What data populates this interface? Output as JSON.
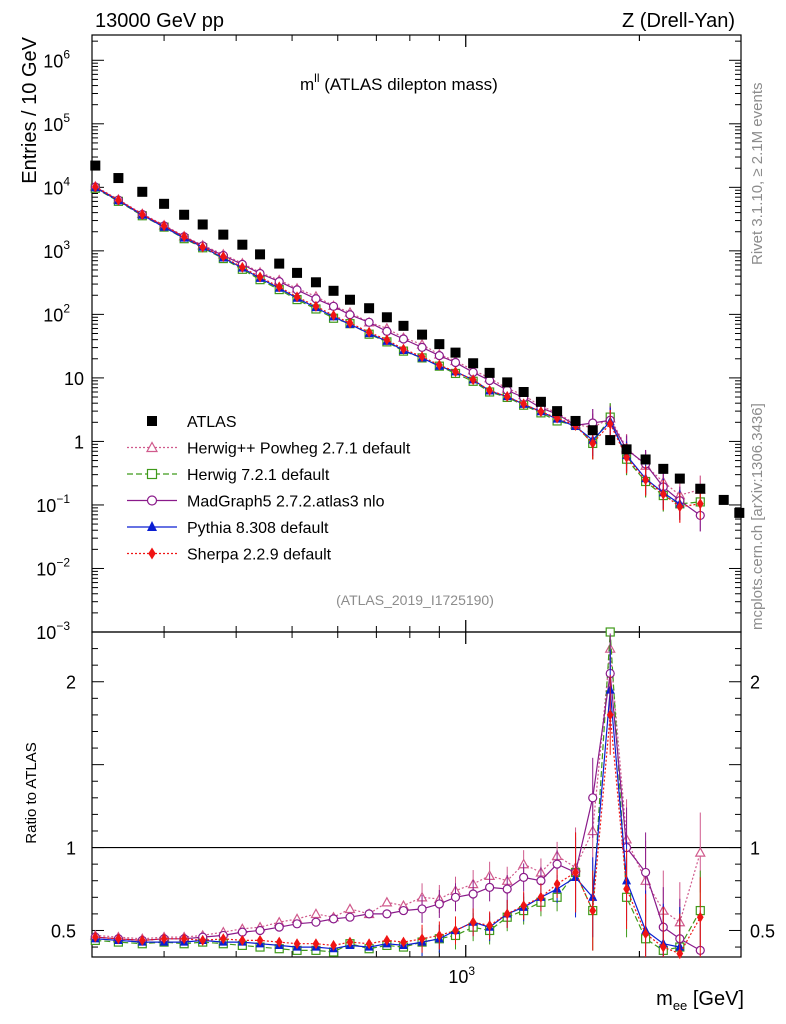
{
  "header": {
    "left": "13000 GeV pp",
    "right": "Z (Drell-Yan)"
  },
  "plot_title_main": "m",
  "plot_title_sup": "ll",
  "plot_title_rest": " (ATLAS dilepton mass)",
  "side_text_top": "Rivet 3.1.10, ≥ 2.1M events",
  "side_text_bottom": "mcplots.cern.ch [arXiv:1306.3436]",
  "analysis_id": "(ATLAS_2019_I1725190)",
  "colors": {
    "atlas": "#000000",
    "herwigpp": "#d05a8c",
    "herwig7": "#3f9a1a",
    "madgraph": "#8a1a8a",
    "pythia": "#0a1ed2",
    "sherpa": "#f01414"
  },
  "chart_data": [
    {
      "type": "scatter",
      "xlabel_main": "m",
      "xlabel_sub": "ee",
      "xlabel_unit": " [GeV]",
      "ylabel": "Entries / 10 GeV",
      "x_scale": "log",
      "y_scale": "log",
      "xlim": [
        225,
        3000
      ],
      "ylim": [
        0.001,
        2500000
      ],
      "x_ticks": [
        {
          "value": 1000,
          "base": "10",
          "exp": "3"
        }
      ],
      "y_ticks": [
        {
          "value": 0.001,
          "base": "10",
          "exp": "−3"
        },
        {
          "value": 0.01,
          "base": "10",
          "exp": "−2"
        },
        {
          "value": 0.1,
          "base": "10",
          "exp": "−1"
        },
        {
          "value": 1,
          "base": "1",
          "exp": ""
        },
        {
          "value": 10,
          "base": "10",
          "exp": ""
        },
        {
          "value": 100,
          "base": "10",
          "exp": "2"
        },
        {
          "value": 1000,
          "base": "10",
          "exp": "3"
        },
        {
          "value": 10000,
          "base": "10",
          "exp": "4"
        },
        {
          "value": 100000,
          "base": "10",
          "exp": "5"
        },
        {
          "value": 1000000,
          "base": "10",
          "exp": "6"
        }
      ],
      "legend_position": "bottom-left",
      "series": [
        {
          "key": "atlas",
          "name": "ATLAS",
          "marker": "square-filled",
          "line": "none"
        },
        {
          "key": "herwigpp",
          "name": "Herwig++ Powheg 2.7.1 default",
          "marker": "triangle-open",
          "line": "dotted"
        },
        {
          "key": "herwig7",
          "name": "Herwig 7.2.1 default",
          "marker": "square-open",
          "line": "dashed"
        },
        {
          "key": "madgraph",
          "name": "MadGraph5 2.7.2.atlas3 nlo",
          "marker": "circle-open",
          "line": "solid"
        },
        {
          "key": "pythia",
          "name": "Pythia 8.308 default",
          "marker": "triangle-filled",
          "line": "solid"
        },
        {
          "key": "sherpa",
          "name": "Sherpa 2.2.9 default",
          "marker": "diamond-filled",
          "line": "dotted"
        }
      ],
      "atlas_points": [
        [
          228,
          22000
        ],
        [
          250,
          14000
        ],
        [
          275,
          8500
        ],
        [
          300,
          5500
        ],
        [
          325,
          3700
        ],
        [
          350,
          2600
        ],
        [
          380,
          1800
        ],
        [
          410,
          1250
        ],
        [
          440,
          880
        ],
        [
          475,
          630
        ],
        [
          510,
          450
        ],
        [
          550,
          320
        ],
        [
          590,
          235
        ],
        [
          630,
          170
        ],
        [
          680,
          125
        ],
        [
          730,
          90
        ],
        [
          780,
          66
        ],
        [
          840,
          48
        ],
        [
          900,
          34
        ],
        [
          960,
          25
        ],
        [
          1030,
          17
        ],
        [
          1100,
          12
        ],
        [
          1180,
          8.5
        ],
        [
          1260,
          6
        ],
        [
          1350,
          4.2
        ],
        [
          1440,
          3
        ],
        [
          1550,
          2.1
        ],
        [
          1660,
          1.5
        ],
        [
          1780,
          1.05
        ],
        [
          1900,
          0.75
        ],
        [
          2050,
          0.52
        ],
        [
          2200,
          0.37
        ],
        [
          2350,
          0.26
        ],
        [
          2550,
          0.18
        ],
        [
          2800,
          0.12
        ],
        [
          2980,
          0.075
        ]
      ],
      "mc_model": {
        "herwigpp": {
          "norm": 0.5,
          "tail": 1.02
        },
        "herwig7": {
          "norm": 0.4,
          "tail": 1.0
        },
        "madgraph": {
          "norm": 0.46,
          "tail": 1.01
        },
        "pythia": {
          "norm": 0.42,
          "tail": 0.99
        },
        "sherpa": {
          "norm": 0.47,
          "tail": 0.98
        }
      }
    },
    {
      "type": "line",
      "ylabel": "Ratio to ATLAS",
      "x_scale": "log",
      "xlim": [
        225,
        3000
      ],
      "ylim": [
        0.34,
        2.3
      ],
      "y_ticks": [
        {
          "value": 0.5,
          "label": "0.5"
        },
        {
          "value": 1,
          "label": "1"
        },
        {
          "value": 2,
          "label": "2"
        }
      ],
      "reference_line": 1,
      "ratio_points": {
        "herwigpp": [
          [
            228,
            0.47
          ],
          [
            250,
            0.46
          ],
          [
            275,
            0.45
          ],
          [
            300,
            0.46
          ],
          [
            325,
            0.46
          ],
          [
            350,
            0.47
          ],
          [
            380,
            0.49
          ],
          [
            410,
            0.51
          ],
          [
            440,
            0.52
          ],
          [
            475,
            0.55
          ],
          [
            510,
            0.57
          ],
          [
            550,
            0.6
          ],
          [
            590,
            0.58
          ],
          [
            630,
            0.63
          ],
          [
            680,
            0.6
          ],
          [
            730,
            0.67
          ],
          [
            780,
            0.65
          ],
          [
            840,
            0.7
          ],
          [
            900,
            0.69
          ],
          [
            960,
            0.74
          ],
          [
            1030,
            0.78
          ],
          [
            1100,
            0.83
          ],
          [
            1180,
            0.8
          ],
          [
            1260,
            0.9
          ],
          [
            1350,
            0.85
          ],
          [
            1440,
            0.95
          ],
          [
            1550,
            0.88
          ],
          [
            1660,
            1.1
          ],
          [
            1780,
            2.2
          ],
          [
            1900,
            1.05
          ],
          [
            2050,
            0.8
          ],
          [
            2200,
            0.62
          ],
          [
            2350,
            0.55
          ],
          [
            2550,
            0.97
          ]
        ],
        "herwig7": [
          [
            228,
            0.44
          ],
          [
            250,
            0.43
          ],
          [
            275,
            0.42
          ],
          [
            300,
            0.43
          ],
          [
            325,
            0.42
          ],
          [
            350,
            0.43
          ],
          [
            380,
            0.42
          ],
          [
            410,
            0.41
          ],
          [
            440,
            0.4
          ],
          [
            475,
            0.39
          ],
          [
            510,
            0.38
          ],
          [
            550,
            0.38
          ],
          [
            590,
            0.37
          ],
          [
            630,
            0.42
          ],
          [
            680,
            0.39
          ],
          [
            730,
            0.41
          ],
          [
            780,
            0.4
          ],
          [
            840,
            0.43
          ],
          [
            900,
            0.45
          ],
          [
            960,
            0.47
          ],
          [
            1030,
            0.52
          ],
          [
            1100,
            0.5
          ],
          [
            1180,
            0.58
          ],
          [
            1260,
            0.62
          ],
          [
            1350,
            0.67
          ],
          [
            1440,
            0.7
          ],
          [
            1550,
            0.85
          ],
          [
            1660,
            0.62
          ],
          [
            1780,
            2.3
          ],
          [
            1900,
            0.7
          ],
          [
            2050,
            0.45
          ],
          [
            2200,
            0.38
          ],
          [
            2350,
            0.4
          ],
          [
            2550,
            0.62
          ]
        ],
        "madgraph": [
          [
            228,
            0.46
          ],
          [
            250,
            0.45
          ],
          [
            275,
            0.44
          ],
          [
            300,
            0.45
          ],
          [
            325,
            0.45
          ],
          [
            350,
            0.46
          ],
          [
            380,
            0.47
          ],
          [
            410,
            0.49
          ],
          [
            440,
            0.5
          ],
          [
            475,
            0.52
          ],
          [
            510,
            0.54
          ],
          [
            550,
            0.55
          ],
          [
            590,
            0.57
          ],
          [
            630,
            0.58
          ],
          [
            680,
            0.6
          ],
          [
            730,
            0.6
          ],
          [
            780,
            0.62
          ],
          [
            840,
            0.63
          ],
          [
            900,
            0.66
          ],
          [
            960,
            0.7
          ],
          [
            1030,
            0.72
          ],
          [
            1100,
            0.76
          ],
          [
            1180,
            0.75
          ],
          [
            1260,
            0.82
          ],
          [
            1350,
            0.8
          ],
          [
            1440,
            0.9
          ],
          [
            1550,
            0.85
          ],
          [
            1660,
            1.3
          ],
          [
            1780,
            2.05
          ],
          [
            1900,
            1.0
          ],
          [
            2050,
            0.85
          ],
          [
            2200,
            0.52
          ],
          [
            2350,
            0.45
          ],
          [
            2550,
            0.38
          ]
        ],
        "pythia": [
          [
            228,
            0.45
          ],
          [
            250,
            0.44
          ],
          [
            275,
            0.43
          ],
          [
            300,
            0.43
          ],
          [
            325,
            0.43
          ],
          [
            350,
            0.44
          ],
          [
            380,
            0.43
          ],
          [
            410,
            0.43
          ],
          [
            440,
            0.42
          ],
          [
            475,
            0.41
          ],
          [
            510,
            0.4
          ],
          [
            550,
            0.4
          ],
          [
            590,
            0.39
          ],
          [
            630,
            0.41
          ],
          [
            680,
            0.4
          ],
          [
            730,
            0.42
          ],
          [
            780,
            0.41
          ],
          [
            840,
            0.43
          ],
          [
            900,
            0.45
          ],
          [
            960,
            0.5
          ],
          [
            1030,
            0.55
          ],
          [
            1100,
            0.52
          ],
          [
            1180,
            0.6
          ],
          [
            1260,
            0.64
          ],
          [
            1350,
            0.7
          ],
          [
            1440,
            0.75
          ],
          [
            1550,
            0.82
          ],
          [
            1660,
            0.7
          ],
          [
            1780,
            1.95
          ],
          [
            1900,
            0.8
          ],
          [
            2050,
            0.5
          ],
          [
            2200,
            0.42
          ],
          [
            2350,
            0.4
          ]
        ],
        "sherpa": [
          [
            228,
            0.46
          ],
          [
            250,
            0.45
          ],
          [
            275,
            0.44
          ],
          [
            300,
            0.45
          ],
          [
            325,
            0.45
          ],
          [
            350,
            0.44
          ],
          [
            380,
            0.45
          ],
          [
            410,
            0.44
          ],
          [
            440,
            0.44
          ],
          [
            475,
            0.43
          ],
          [
            510,
            0.42
          ],
          [
            550,
            0.42
          ],
          [
            590,
            0.41
          ],
          [
            630,
            0.43
          ],
          [
            680,
            0.42
          ],
          [
            730,
            0.44
          ],
          [
            780,
            0.43
          ],
          [
            840,
            0.45
          ],
          [
            900,
            0.47
          ],
          [
            960,
            0.5
          ],
          [
            1030,
            0.55
          ],
          [
            1100,
            0.53
          ],
          [
            1180,
            0.6
          ],
          [
            1260,
            0.65
          ],
          [
            1350,
            0.7
          ],
          [
            1440,
            0.78
          ],
          [
            1550,
            0.85
          ],
          [
            1660,
            0.62
          ],
          [
            1780,
            1.8
          ],
          [
            1900,
            0.75
          ],
          [
            2050,
            0.48
          ],
          [
            2200,
            0.4
          ],
          [
            2350,
            0.36
          ],
          [
            2550,
            0.58
          ]
        ]
      }
    }
  ]
}
